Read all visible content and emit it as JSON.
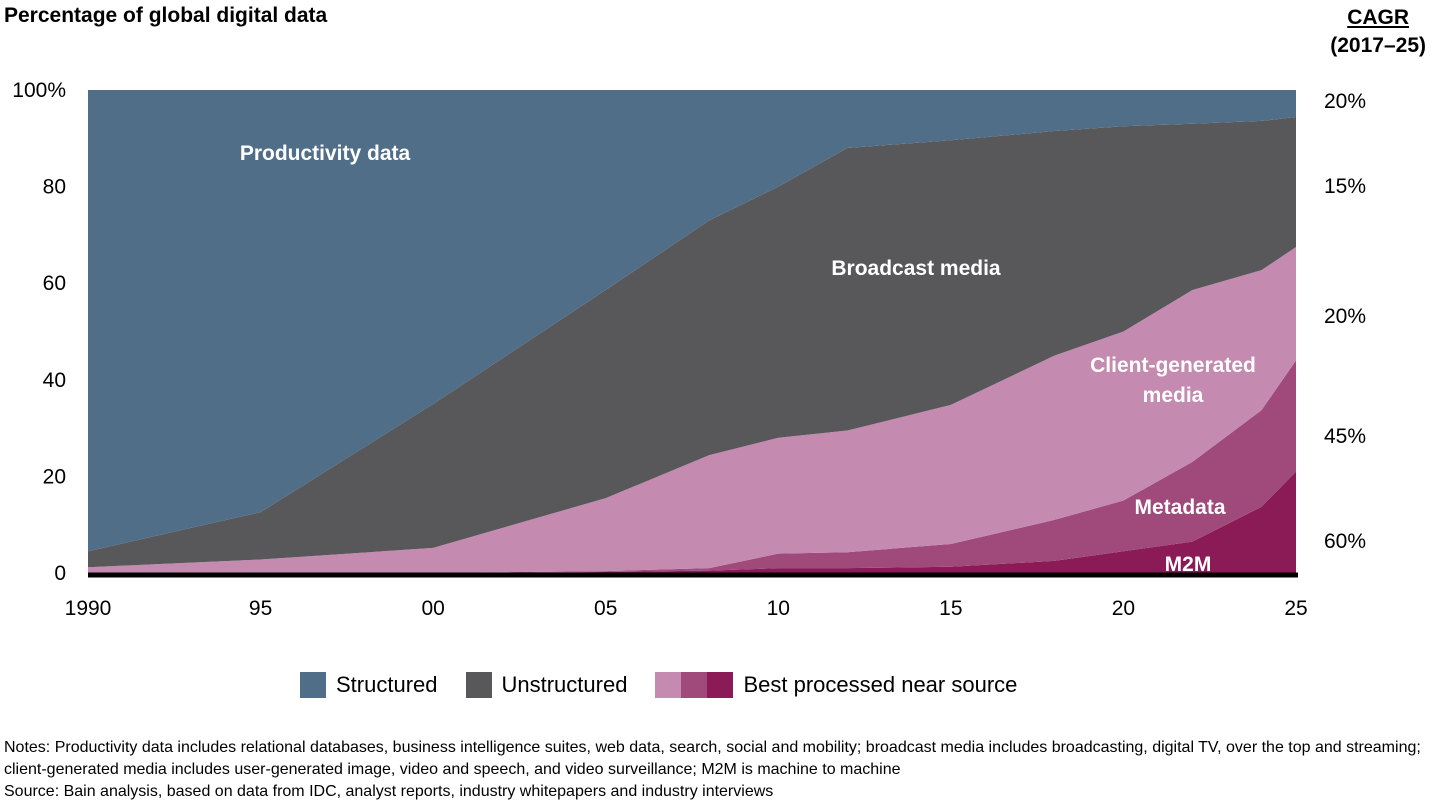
{
  "chart_data": {
    "type": "area",
    "stacked": true,
    "title": "Percentage of global digital data",
    "right_header": [
      "CAGR",
      "(2017–25)"
    ],
    "x": [
      1990,
      1995,
      2000,
      2005,
      2008,
      2010,
      2012,
      2015,
      2018,
      2020,
      2022,
      2024,
      2025
    ],
    "xlim": [
      1990,
      2025
    ],
    "x_tick_values": [
      1990,
      1995,
      2000,
      2005,
      2010,
      2015,
      2020,
      2025
    ],
    "x_tick_labels": [
      "1990",
      "95",
      "00",
      "05",
      "10",
      "15",
      "20",
      "25"
    ],
    "ylim": [
      0,
      100
    ],
    "y_tick_values": [
      0,
      20,
      40,
      60,
      80,
      100
    ],
    "y_tick_labels": [
      "0",
      "20",
      "40",
      "60",
      "80",
      "100%"
    ],
    "grid": false,
    "series": [
      {
        "label": "M2M",
        "group": "Best processed near source",
        "color": "#8a1b56",
        "cagr": "60%",
        "values": [
          0,
          0,
          0,
          0.2,
          0.5,
          1,
          1,
          1.3,
          2.5,
          4.5,
          6.5,
          13.7,
          21
        ]
      },
      {
        "label": "Metadata",
        "group": "Best processed near source",
        "color": "#a0497b",
        "cagr": "45%",
        "values": [
          0,
          0,
          0,
          0.2,
          0.5,
          3,
          3.3,
          4.7,
          8.5,
          10.5,
          16.5,
          20,
          23
        ]
      },
      {
        "label": "Client-generated media",
        "group": "Best processed near source",
        "color": "#c48aaf",
        "cagr": "20%",
        "values": [
          1.2,
          2.8,
          5.2,
          15.1,
          23.4,
          24,
          25.2,
          28.8,
          34,
          35,
          35.6,
          29,
          23.5
        ]
      },
      {
        "label": "Broadcast media",
        "group": "Unstructured",
        "color": "#58585a",
        "cagr": "15%",
        "values": [
          3.3,
          9.8,
          29.8,
          43.1,
          48.6,
          52,
          58.5,
          54.8,
          46.5,
          42.5,
          34.4,
          30.9,
          26.9
        ]
      },
      {
        "label": "Productivity data",
        "group": "Structured",
        "color": "#516e88",
        "cagr": "20%",
        "values": [
          95.5,
          87.4,
          65,
          41.4,
          27,
          20,
          12,
          10.4,
          8.5,
          7.5,
          7,
          6.4,
          5.6
        ]
      }
    ],
    "legend": {
      "placement": "bottom",
      "items": [
        {
          "label": "Structured",
          "colors": [
            "#516e88"
          ]
        },
        {
          "label": "Unstructured",
          "colors": [
            "#58585a"
          ]
        },
        {
          "label": "Best processed near source",
          "colors": [
            "#c48aaf",
            "#a0497b",
            "#8a1b56"
          ]
        }
      ]
    }
  },
  "notes": "Notes: Productivity data includes relational databases, business intelligence suites, web data, search, social and mobility; broadcast media includes broadcasting, digital TV, over the top and streaming; client-generated media includes user-generated image, video and speech, and video surveillance; M2M is machine to machine",
  "source": "Source: Bain analysis, based on data from IDC, analyst reports, industry whitepapers and industry interviews"
}
